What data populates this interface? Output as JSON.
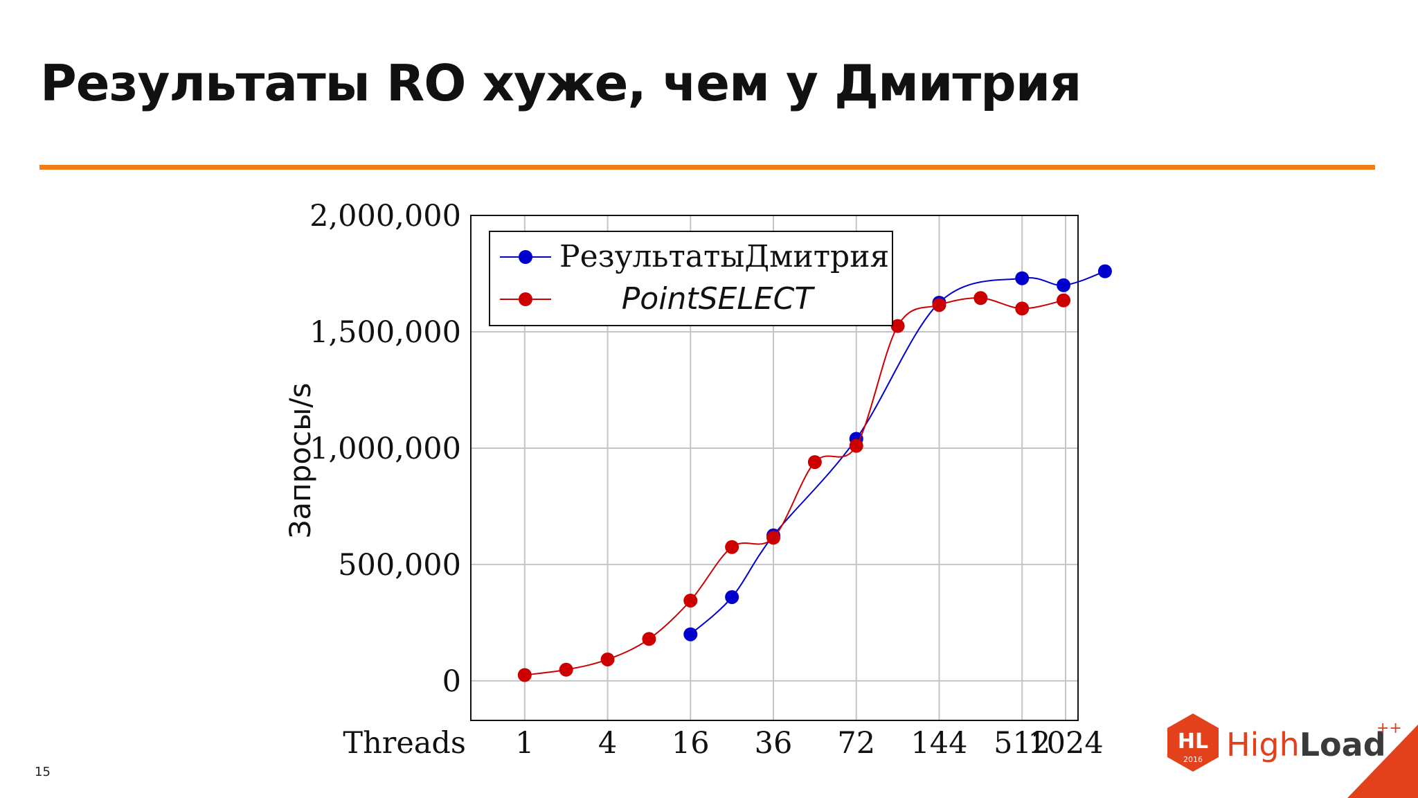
{
  "slide": {
    "title": "Результаты RO хуже, чем у Дмитрия",
    "number": "15"
  },
  "logo": {
    "badge_text": "HL",
    "badge_year": "2016",
    "word_light": "High",
    "word_bold": "Load",
    "superscript": "++",
    "colors": {
      "badge": "#e2411b",
      "accent": "#e2411b",
      "text": "#3a3a3a"
    }
  },
  "chart_data": {
    "type": "line",
    "xlabel": "Threads",
    "ylabel": "Запросы/s",
    "x_tick_labels": [
      "1",
      "4",
      "16",
      "36",
      "72",
      "144",
      "512",
      "1024"
    ],
    "x_tick_positions": [
      1,
      3,
      5,
      7,
      9,
      11,
      13,
      14.05
    ],
    "xlim": [
      -0.3,
      14.35
    ],
    "ylim": [
      -170000,
      2000000
    ],
    "y_ticks": [
      0,
      500000,
      1000000,
      1500000,
      2000000
    ],
    "y_tick_labels": [
      "0",
      "500,000",
      "1,000,000",
      "1,500,000",
      "2,000,000"
    ],
    "grid": true,
    "legend_position": "top-left",
    "series": [
      {
        "name": "РезультатыДмитрия",
        "color": "#0000cc",
        "x": [
          5,
          6,
          7,
          9,
          11,
          13,
          14,
          15
        ],
        "values": [
          200000,
          360000,
          625000,
          1040000,
          1625000,
          1730000,
          1700000,
          1760000
        ]
      },
      {
        "name": "PointSELECT",
        "color": "#cc0000",
        "x": [
          1,
          2,
          3,
          4,
          5,
          6,
          7,
          8,
          9,
          10,
          11,
          12,
          13,
          14
        ],
        "values": [
          25000,
          48000,
          92000,
          180000,
          345000,
          575000,
          615000,
          940000,
          1010000,
          1525000,
          1615000,
          1645000,
          1600000,
          1635000
        ]
      }
    ]
  }
}
